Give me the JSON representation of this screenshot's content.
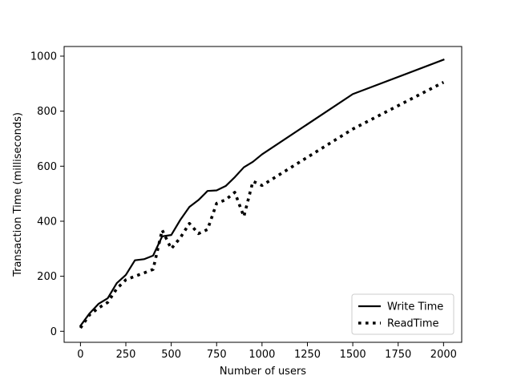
{
  "chart_data": {
    "type": "line",
    "xlabel": "Number of users",
    "ylabel": "Transaction Time (milliseconds)",
    "xlim": [
      -90,
      2100
    ],
    "ylim": [
      -40,
      1035
    ],
    "xticks": [
      0,
      250,
      500,
      750,
      1000,
      1250,
      1500,
      1750,
      2000
    ],
    "yticks": [
      0,
      200,
      400,
      600,
      800,
      1000
    ],
    "grid": false,
    "legend_position": "bottom-right",
    "series": [
      {
        "name": "Write Time",
        "color": "#000000",
        "style": "solid",
        "x": [
          0,
          50,
          100,
          150,
          200,
          250,
          300,
          350,
          400,
          450,
          500,
          550,
          600,
          650,
          700,
          750,
          800,
          850,
          900,
          950,
          1000,
          1500,
          2000
        ],
        "y": [
          20,
          65,
          100,
          120,
          175,
          205,
          258,
          262,
          275,
          345,
          350,
          405,
          452,
          477,
          510,
          512,
          528,
          560,
          596,
          616,
          643,
          862,
          987
        ]
      },
      {
        "name": "ReadTime",
        "color": "#000000",
        "style": "dotted",
        "x": [
          0,
          50,
          100,
          150,
          200,
          250,
          300,
          350,
          400,
          450,
          500,
          550,
          600,
          650,
          700,
          750,
          800,
          850,
          900,
          950,
          1000,
          1500,
          2000
        ],
        "y": [
          12,
          60,
          85,
          105,
          155,
          187,
          200,
          212,
          225,
          368,
          300,
          340,
          392,
          355,
          370,
          465,
          478,
          505,
          417,
          545,
          530,
          735,
          905
        ]
      }
    ]
  }
}
